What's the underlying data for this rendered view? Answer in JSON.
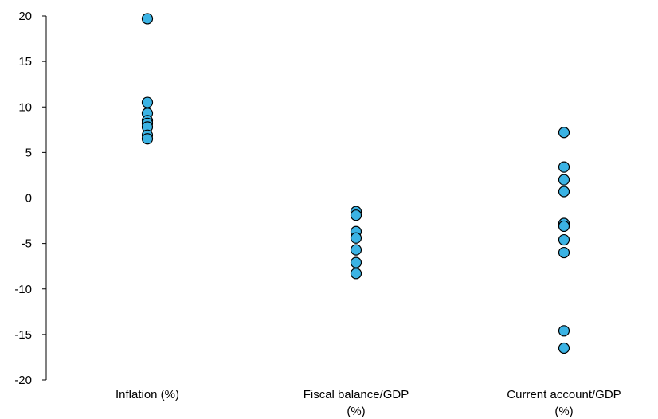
{
  "chart_data": {
    "type": "scatter",
    "title": "",
    "xlabel": "",
    "ylabel": "",
    "ylim": [
      -20,
      20
    ],
    "y_ticks": [
      "20",
      "15",
      "10",
      "5",
      "0",
      "-5",
      "-10",
      "-15",
      "-20"
    ],
    "categories": [
      [
        "Inflation (%)"
      ],
      [
        "Fiscal balance/GDP",
        "(%)"
      ],
      [
        "Current account/GDP",
        "(%)"
      ]
    ],
    "series": [
      {
        "category_index": 0,
        "values": [
          19.7,
          10.5,
          9.3,
          8.5,
          8.2,
          7.8,
          6.9,
          6.5
        ]
      },
      {
        "category_index": 1,
        "values": [
          -1.5,
          -1.9,
          -3.7,
          -4.4,
          -5.7,
          -7.1,
          -8.3
        ]
      },
      {
        "category_index": 2,
        "values": [
          7.2,
          3.4,
          2.0,
          0.7,
          -2.8,
          -3.1,
          -4.6,
          -6.0,
          -14.6,
          -16.5
        ]
      }
    ],
    "marker_color": "#3BB3E4",
    "marker_edge_color": "#000000",
    "grid": false,
    "legend": "none",
    "zero_line": true
  }
}
